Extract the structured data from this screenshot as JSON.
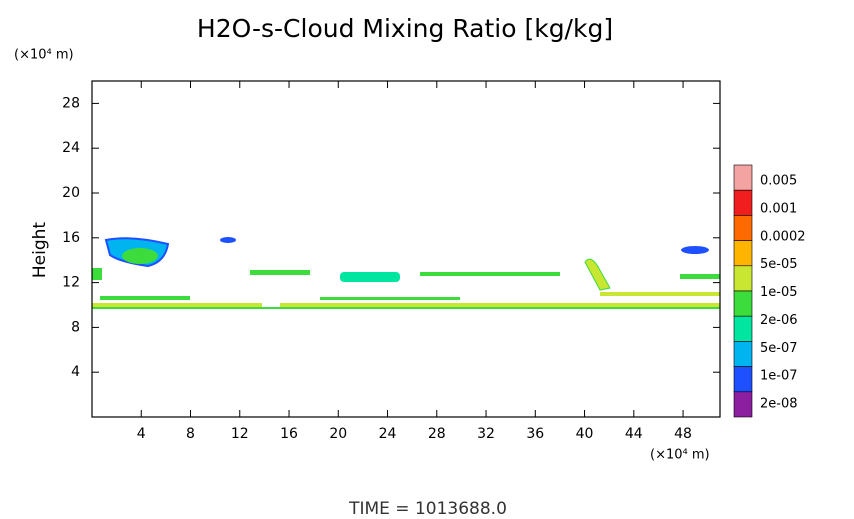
{
  "chart_data": {
    "type": "contour",
    "title": "H2O-s-Cloud Mixing Ratio [kg/kg]",
    "y_label": "Height",
    "y_unit": "(×10⁴ m)",
    "x_unit": "(×10⁴ m)",
    "time_label": "TIME = 1013688.0",
    "xlim": [
      0,
      51
    ],
    "xticks": [
      4,
      8,
      12,
      16,
      20,
      24,
      28,
      32,
      36,
      40,
      44,
      48
    ],
    "ylim": [
      0,
      30
    ],
    "yticks": [
      4,
      8,
      12,
      16,
      20,
      24,
      28
    ],
    "colorbar": {
      "colors": [
        "#f4a3a3",
        "#f01e1e",
        "#ff6a00",
        "#ffb400",
        "#c8e632",
        "#3cdc3c",
        "#00e6a0",
        "#00b4f0",
        "#1e50ff",
        "#8c1ea0"
      ],
      "levels": [
        0.005,
        0.001,
        0.0002,
        {
          "value": 5e-05,
          "label": "5e-05"
        },
        {
          "value": 1e-05,
          "label": "1e-05"
        },
        {
          "value": 2e-06,
          "label": "2e-06"
        },
        {
          "value": 5e-07,
          "label": "5e-07"
        },
        {
          "value": 1e-07,
          "label": "1e-07"
        },
        {
          "value": 2e-08,
          "label": "2e-08"
        }
      ]
    }
  }
}
